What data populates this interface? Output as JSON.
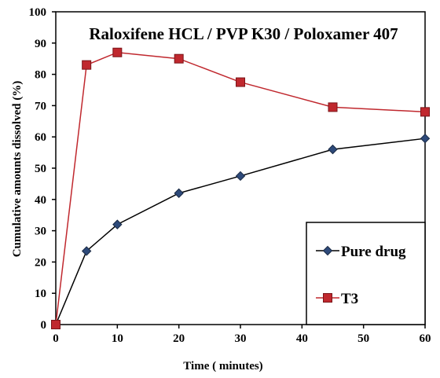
{
  "chart_data": {
    "type": "line",
    "title": "Raloxifene HCL / PVP K30 / Poloxamer 407",
    "xlabel": "Time ( minutes)",
    "ylabel": "Cumulative amounts dissolved (%)",
    "xlim": [
      0,
      60
    ],
    "ylim": [
      0,
      100
    ],
    "xticks": [
      0,
      10,
      20,
      30,
      40,
      50,
      60
    ],
    "yticks": [
      0,
      10,
      20,
      30,
      40,
      50,
      60,
      70,
      80,
      90,
      100
    ],
    "grid": false,
    "legend_position": "bottom-right",
    "series": [
      {
        "name": "Pure drug",
        "marker": "diamond",
        "color": "#000000",
        "marker_color": "#2e4a7a",
        "x": [
          0,
          5,
          10,
          20,
          30,
          45,
          60
        ],
        "y": [
          0,
          23.5,
          32,
          42,
          47.5,
          56,
          59.5
        ]
      },
      {
        "name": "T3",
        "marker": "square",
        "color": "#c0282e",
        "marker_color": "#c0282e",
        "x": [
          0,
          5,
          10,
          20,
          30,
          45,
          60
        ],
        "y": [
          0,
          83,
          87,
          85,
          77.5,
          69.5,
          68
        ]
      }
    ]
  }
}
